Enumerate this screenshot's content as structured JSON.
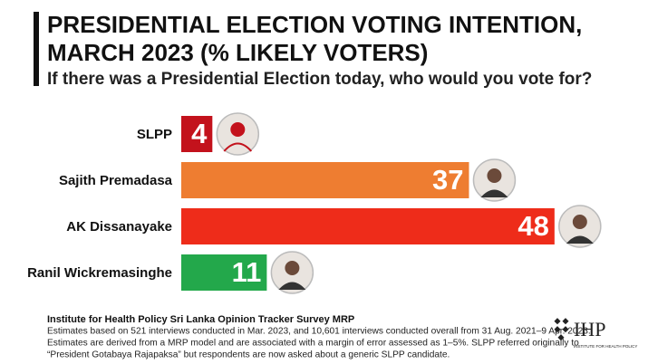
{
  "chart_data": {
    "type": "bar",
    "orientation": "horizontal",
    "title_lines": [
      "PRESIDENTIAL ELECTION VOTING INTENTION,",
      "MARCH 2023 (% LIKELY VOTERS)"
    ],
    "subtitle": "If there was a Presidential Election today, who would you vote for?",
    "categories": [
      "SLPP",
      "Sajith Premadasa",
      "AK Dissanayake",
      "Ranil Wickremasinghe"
    ],
    "values": [
      4,
      37,
      48,
      11
    ],
    "colors": [
      "#c3121c",
      "#ee7d31",
      "#ee2c1a",
      "#23a84b"
    ],
    "source": "Institute for Health Policy Sri Lanka Opinion Tracker Survey MRP",
    "notes": [
      "Estimates based on 521 interviews conducted in Mar. 2023, and 10,601 interviews conducted overall from 31 Aug. 2021–9 Apr. 2023.",
      "Estimates are derived from a MRP model and are associated with a margin of error assessed as 1–5%. SLPP referred originally to",
      "“President Gotabaya Rajapaksa” but respondents are now asked about a generic SLPP candidate."
    ],
    "logo": {
      "text": "IHP",
      "caption": "INSTITUTE FOR HEALTH POLICY"
    }
  }
}
